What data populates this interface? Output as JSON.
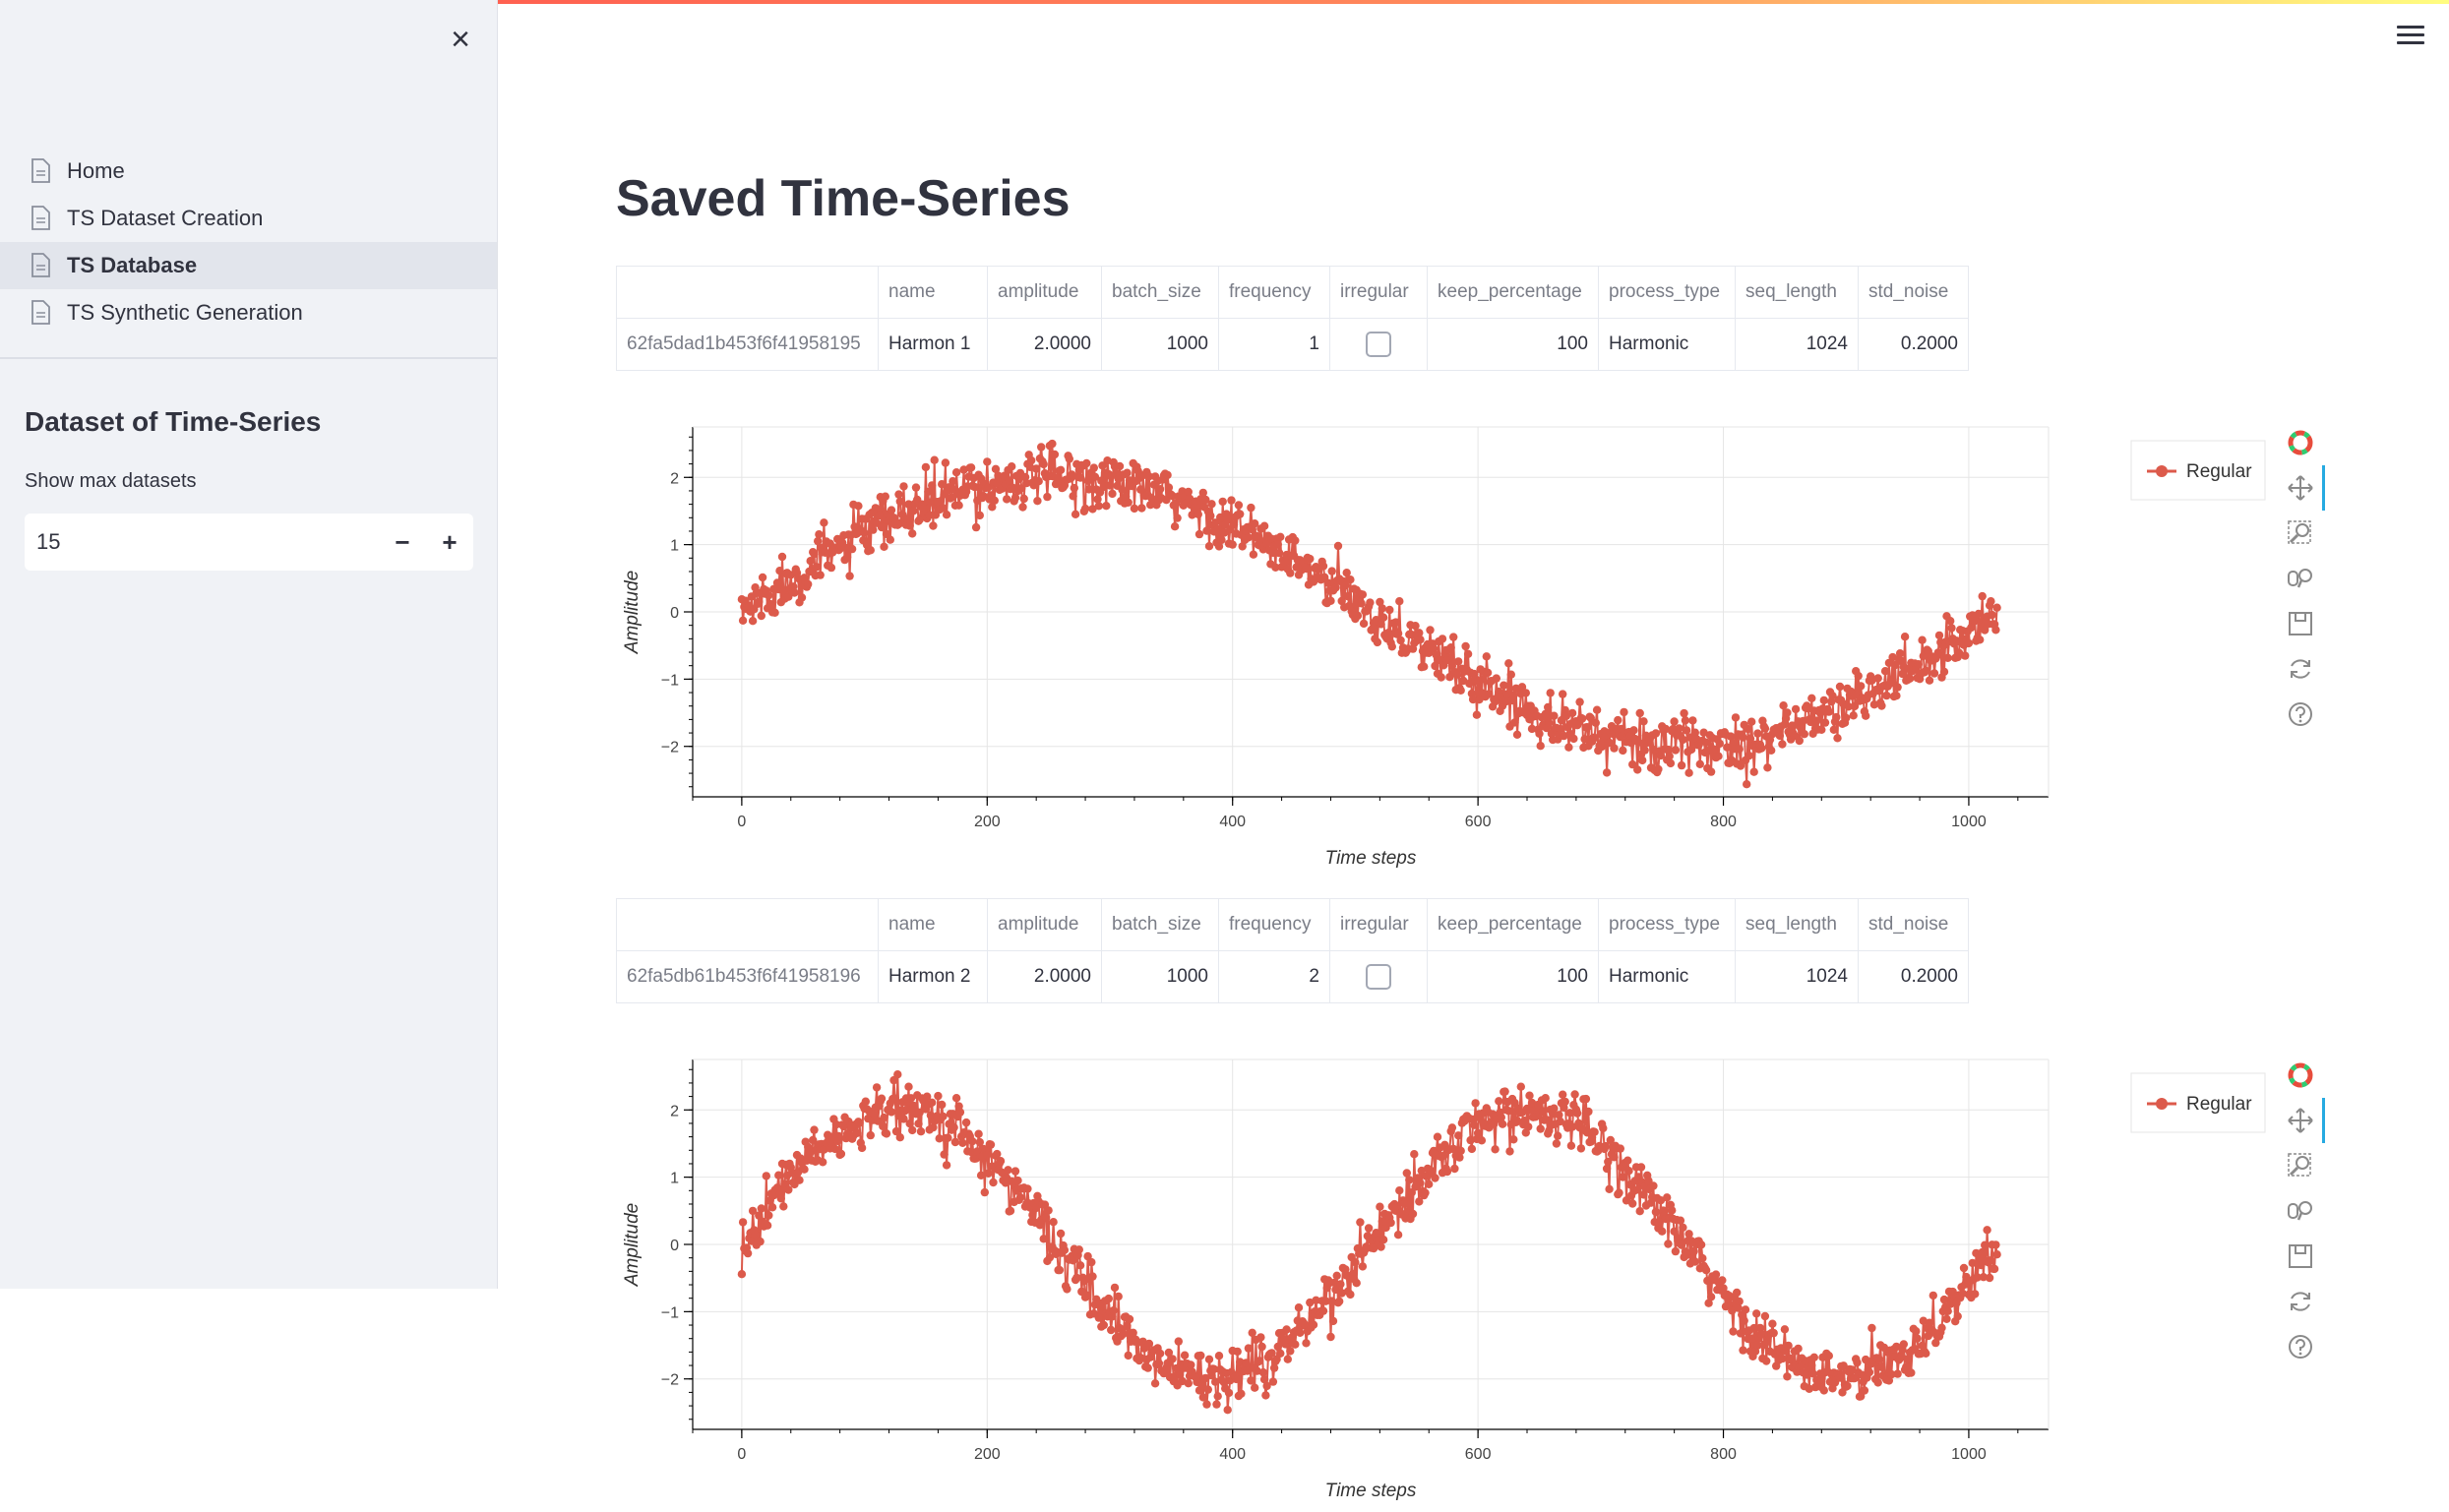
{
  "sidebar": {
    "nav_items": [
      {
        "label": "Home",
        "active": false
      },
      {
        "label": "TS Dataset Creation",
        "active": false
      },
      {
        "label": "TS Database",
        "active": true
      },
      {
        "label": "TS Synthetic Generation",
        "active": false
      }
    ],
    "section_title": "Dataset of Time-Series",
    "max_datasets_label": "Show max datasets",
    "max_datasets_value": "15",
    "decrement": "−",
    "increment": "+"
  },
  "page_title": "Saved Time-Series",
  "table_columns": [
    "name",
    "amplitude",
    "batch_size",
    "frequency",
    "irregular",
    "keep_percentage",
    "process_type",
    "seq_length",
    "std_noise"
  ],
  "datasets": [
    {
      "id": "62fa5dad1b453f6f41958195",
      "name": "Harmon 1",
      "amplitude": "2.0000",
      "batch_size": "1000",
      "frequency": "1",
      "irregular": false,
      "keep_percentage": "100",
      "process_type": "Harmonic",
      "seq_length": "1024",
      "std_noise": "0.2000"
    },
    {
      "id": "62fa5db61b453f6f41958196",
      "name": "Harmon 2",
      "amplitude": "2.0000",
      "batch_size": "1000",
      "frequency": "2",
      "irregular": false,
      "keep_percentage": "100",
      "process_type": "Harmonic",
      "seq_length": "1024",
      "std_noise": "0.2000"
    }
  ],
  "chart_data": [
    {
      "type": "line",
      "markers": true,
      "xlabel": "Time steps",
      "ylabel": "Amplitude",
      "xlim": [
        -40,
        1065
      ],
      "ylim": [
        -2.75,
        2.75
      ],
      "xticks": [
        0,
        200,
        400,
        600,
        800,
        1000
      ],
      "yticks": [
        -2,
        -1,
        0,
        1,
        2
      ],
      "ytick_labels": [
        "−2",
        "−1",
        "0",
        "1",
        "2"
      ],
      "grid": true,
      "legend": "top-right",
      "series": [
        {
          "name": "Regular",
          "color": "#dc5a4b",
          "amplitude": 2.0,
          "frequency": 1,
          "length": 1024,
          "std_noise": 0.2
        }
      ]
    },
    {
      "type": "line",
      "markers": true,
      "xlabel": "Time steps",
      "ylabel": "Amplitude",
      "xlim": [
        -40,
        1065
      ],
      "ylim": [
        -2.75,
        2.75
      ],
      "xticks": [
        0,
        200,
        400,
        600,
        800,
        1000
      ],
      "yticks": [
        -2,
        -1,
        0,
        1,
        2
      ],
      "ytick_labels": [
        "−2",
        "−1",
        "0",
        "1",
        "2"
      ],
      "grid": true,
      "legend": "top-right",
      "series": [
        {
          "name": "Regular",
          "color": "#dc5a4b",
          "amplitude": 2.0,
          "frequency": 2,
          "length": 1024,
          "std_noise": 0.2
        }
      ]
    }
  ],
  "toolbar_icons": [
    "bokeh-logo-icon",
    "pan-icon",
    "box-zoom-icon",
    "wheel-zoom-icon",
    "save-icon",
    "reset-icon",
    "help-icon"
  ]
}
